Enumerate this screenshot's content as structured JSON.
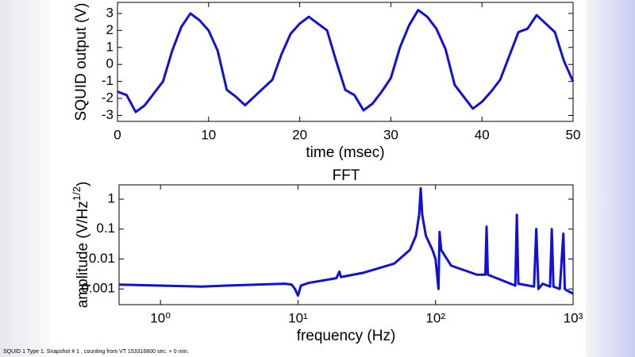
{
  "chart_data": [
    {
      "type": "line",
      "xlabel": "time (msec)",
      "ylabel": "SQUID output (V)",
      "x": [
        0,
        1,
        2,
        3,
        4,
        5,
        6,
        7,
        8,
        9,
        10,
        11,
        12,
        13,
        14,
        15,
        16,
        17,
        18,
        19,
        20,
        21,
        22,
        23,
        24,
        25,
        26,
        27,
        28,
        29,
        30,
        31,
        32,
        33,
        34,
        35,
        36,
        37,
        38,
        39,
        40,
        41,
        42,
        43,
        44,
        45,
        46,
        47,
        48,
        49,
        50
      ],
      "series": [
        {
          "color": "#1010d8",
          "values": [
            -1.6,
            -1.8,
            -2.8,
            -2.4,
            -1.7,
            -1.0,
            0.8,
            2.2,
            3.0,
            2.6,
            2.0,
            0.8,
            -1.5,
            -1.9,
            -2.4,
            -1.9,
            -1.4,
            -0.9,
            0.6,
            1.8,
            2.4,
            2.8,
            2.4,
            2.0,
            0.2,
            -1.5,
            -1.8,
            -2.7,
            -2.3,
            -1.6,
            -0.8,
            1.0,
            2.3,
            3.2,
            2.8,
            2.1,
            0.9,
            -1.2,
            -1.9,
            -2.6,
            -2.2,
            -1.6,
            -0.9,
            0.5,
            1.9,
            2.1,
            2.9,
            2.4,
            1.9,
            0.2,
            -1.0
          ]
        }
      ],
      "xlim": [
        0,
        50
      ],
      "xticks": [
        0,
        10,
        20,
        30,
        40,
        50
      ],
      "ylim": [
        -3.35,
        3.65
      ],
      "yticks": [
        -3,
        -2,
        -1,
        0,
        1,
        2,
        3
      ]
    },
    {
      "type": "line",
      "title": "FFT",
      "xlabel": "frequency (Hz)",
      "ylabel": [
        "amplitude (V/Hz",
        "1/2",
        ")"
      ],
      "xscale": "log",
      "yscale": "log",
      "x": [
        0.5,
        1,
        2,
        3,
        5,
        8,
        9,
        9.5,
        10,
        10.5,
        12,
        19,
        20,
        20.5,
        30,
        50,
        65,
        72,
        76,
        78,
        80,
        85,
        95,
        100,
        105,
        107,
        110,
        130,
        200,
        230,
        235,
        240,
        300,
        380,
        390,
        400,
        520,
        540,
        560,
        600,
        680,
        700,
        720,
        800,
        850,
        870,
        900,
        1000
      ],
      "series": [
        {
          "color": "#1010d8",
          "values": [
            0.0014,
            0.0013,
            0.0012,
            0.0013,
            0.0014,
            0.0015,
            0.0014,
            0.001,
            0.0006,
            0.0013,
            0.0016,
            0.0023,
            0.0038,
            0.0025,
            0.0035,
            0.007,
            0.02,
            0.06,
            0.3,
            2.3,
            0.3,
            0.06,
            0.02,
            0.01,
            0.001,
            0.08,
            0.02,
            0.006,
            0.003,
            0.003,
            0.12,
            0.003,
            0.002,
            0.0013,
            0.3,
            0.0015,
            0.0012,
            0.1,
            0.001,
            0.0015,
            0.0012,
            0.1,
            0.0012,
            0.001,
            0.07,
            0.001,
            0.0009,
            0.0007
          ]
        }
      ],
      "xlim": [
        0.5,
        1000
      ],
      "xticks": [
        {
          "value": 1,
          "label": "10⁰"
        },
        {
          "value": 10,
          "label": "10¹"
        },
        {
          "value": 100,
          "label": "10²"
        },
        {
          "value": 1000,
          "label": "10³"
        }
      ],
      "ylim": [
        0.0003,
        3
      ],
      "yticks": [
        0.001,
        0.01,
        0.1,
        1
      ]
    }
  ],
  "footer": "SQUID 1 Type 1. Snapshot # 1 , counting from VT 153316800 sec. + 0 min."
}
